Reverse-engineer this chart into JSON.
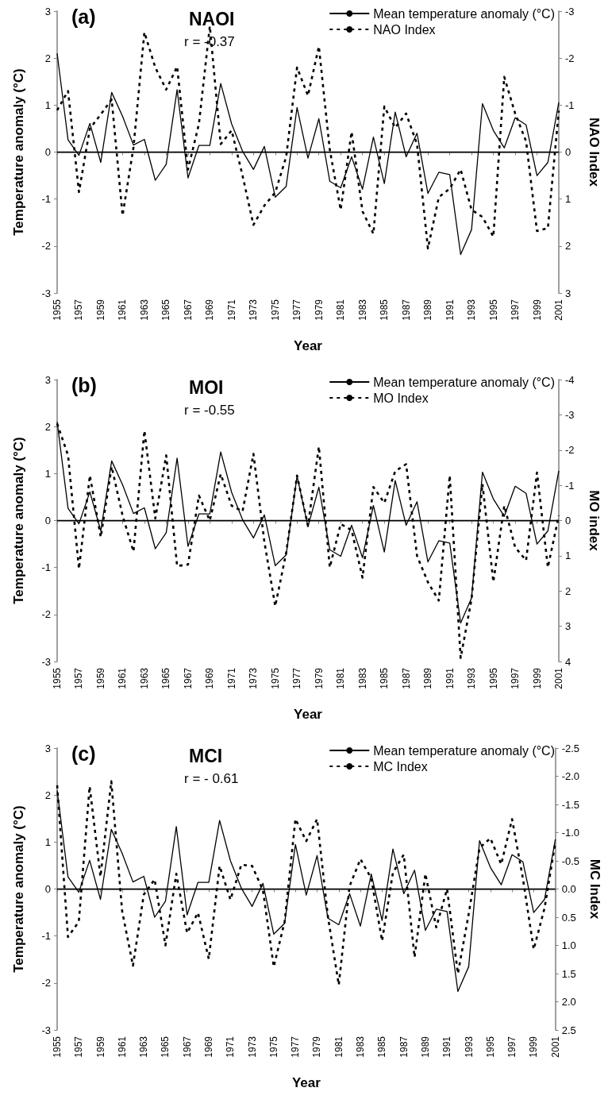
{
  "chart_data": [
    {
      "type": "line",
      "title": "(a)",
      "annotations": [
        "NAOI",
        "r = -0.37"
      ],
      "xlabel": "Year",
      "ylabel": "Temperature anomaly (°C)",
      "y2label": "NAO Index",
      "x": [
        1955,
        1956,
        1957,
        1958,
        1959,
        1960,
        1961,
        1962,
        1963,
        1964,
        1965,
        1966,
        1967,
        1968,
        1969,
        1970,
        1971,
        1972,
        1973,
        1974,
        1975,
        1976,
        1977,
        1978,
        1979,
        1980,
        1981,
        1982,
        1983,
        1984,
        1985,
        1986,
        1987,
        1988,
        1989,
        1990,
        1991,
        1992,
        1993,
        1994,
        1995,
        1996,
        1997,
        1998,
        1999,
        2000,
        2001
      ],
      "xlim": [
        1955,
        2001
      ],
      "xticks": [
        1955,
        1957,
        1959,
        1961,
        1963,
        1965,
        1967,
        1969,
        1971,
        1973,
        1975,
        1977,
        1979,
        1981,
        1983,
        1985,
        1987,
        1989,
        1991,
        1993,
        1995,
        1997,
        1999,
        2001
      ],
      "ylim": [
        -3,
        3
      ],
      "yticks": [
        -3,
        -2,
        -1,
        0,
        1,
        2,
        3
      ],
      "y2lim": [
        3,
        -3
      ],
      "y2ticks": [
        -3,
        -2,
        -1,
        0,
        1,
        2,
        3
      ],
      "legend": "top right",
      "ref_lines": [
        {
          "axis": "y",
          "value": 0,
          "label": null
        }
      ],
      "series": [
        {
          "name": "Mean temperature anomaly (°C)",
          "color": "#000000",
          "line_style": "solid",
          "values": [
            2.1,
            0.26,
            -0.07,
            0.61,
            -0.22,
            1.27,
            0.76,
            0.15,
            0.27,
            -0.6,
            -0.26,
            1.33,
            -0.55,
            0.14,
            0.14,
            1.46,
            0.6,
            0.02,
            -0.37,
            0.12,
            -0.96,
            -0.73,
            0.95,
            -0.13,
            0.71,
            -0.62,
            -0.76,
            -0.1,
            -0.79,
            0.32,
            -0.67,
            0.85,
            -0.1,
            0.4,
            -0.88,
            -0.43,
            -0.48,
            -2.18,
            -1.65,
            1.03,
            0.46,
            0.09,
            0.73,
            0.58,
            -0.5,
            -0.22,
            1.06
          ]
        },
        {
          "name": "NAO Index",
          "color": "#000000",
          "line_style": "dashed",
          "axis": "y2",
          "values": [
            -0.89,
            -1.3,
            0.85,
            -0.5,
            -0.8,
            -1.12,
            1.35,
            -0.1,
            -2.55,
            -1.8,
            -1.33,
            -1.82,
            0.37,
            -0.6,
            -2.68,
            -0.17,
            -0.46,
            0.5,
            1.55,
            1.14,
            0.86,
            0.1,
            -1.8,
            -1.2,
            -2.25,
            -0.05,
            1.23,
            -0.43,
            1.26,
            1.74,
            -0.97,
            -0.52,
            -0.82,
            -0.17,
            2.05,
            0.96,
            0.78,
            0.37,
            1.23,
            1.38,
            1.8,
            -1.6,
            -0.82,
            -0.23,
            1.68,
            1.62,
            -0.88
          ]
        }
      ]
    },
    {
      "type": "line",
      "title": "(b)",
      "annotations": [
        "MOI",
        "r = -0.55"
      ],
      "xlabel": "Year",
      "ylabel": "Temperature anomaly (°C)",
      "y2label": "MO index",
      "x": [
        1955,
        1956,
        1957,
        1958,
        1959,
        1960,
        1961,
        1962,
        1963,
        1964,
        1965,
        1966,
        1967,
        1968,
        1969,
        1970,
        1971,
        1972,
        1973,
        1974,
        1975,
        1976,
        1977,
        1978,
        1979,
        1980,
        1981,
        1982,
        1983,
        1984,
        1985,
        1986,
        1987,
        1988,
        1989,
        1990,
        1991,
        1992,
        1993,
        1994,
        1995,
        1996,
        1997,
        1998,
        1999,
        2000,
        2001
      ],
      "xlim": [
        1955,
        2001
      ],
      "xticks": [
        1955,
        1957,
        1959,
        1961,
        1963,
        1965,
        1967,
        1969,
        1971,
        1973,
        1975,
        1977,
        1979,
        1981,
        1983,
        1985,
        1987,
        1989,
        1991,
        1993,
        1995,
        1997,
        1999,
        2001
      ],
      "ylim": [
        -3,
        3
      ],
      "yticks": [
        -3,
        -2,
        -1,
        0,
        1,
        2,
        3
      ],
      "y2lim": [
        4,
        -4
      ],
      "y2ticks": [
        -4,
        -3,
        -2,
        -1,
        0,
        1,
        2,
        3,
        4
      ],
      "legend": "top right",
      "ref_lines": [
        {
          "axis": "y",
          "value": 0,
          "label": null
        }
      ],
      "series": [
        {
          "name": "Mean temperature anomaly (°C)",
          "color": "#000000",
          "line_style": "solid",
          "values": [
            2.1,
            0.26,
            -0.07,
            0.61,
            -0.22,
            1.27,
            0.76,
            0.15,
            0.27,
            -0.6,
            -0.26,
            1.33,
            -0.55,
            0.14,
            0.14,
            1.46,
            0.6,
            0.02,
            -0.37,
            0.12,
            -0.96,
            -0.73,
            0.95,
            -0.13,
            0.71,
            -0.62,
            -0.76,
            -0.1,
            -0.79,
            0.32,
            -0.67,
            0.85,
            -0.1,
            0.4,
            -0.88,
            -0.43,
            -0.48,
            -2.18,
            -1.65,
            1.03,
            0.46,
            0.09,
            0.73,
            0.58,
            -0.5,
            -0.22,
            1.06
          ]
        },
        {
          "name": "MO Index",
          "color": "#000000",
          "line_style": "dashed",
          "axis": "y2",
          "values": [
            -2.75,
            -1.85,
            1.37,
            -1.28,
            0.47,
            -1.53,
            -0.14,
            0.88,
            -2.55,
            -0.06,
            -1.85,
            1.29,
            1.25,
            -0.71,
            0,
            -1.32,
            -0.42,
            -0.26,
            -1.89,
            0.6,
            2.43,
            0.92,
            -1.28,
            0.15,
            -2.1,
            1.33,
            0.1,
            0.27,
            1.62,
            -0.95,
            -0.5,
            -1.4,
            -1.6,
            1.0,
            1.75,
            2.27,
            -1.28,
            3.9,
            2.23,
            -1.04,
            1.74,
            -0.42,
            0.76,
            1.13,
            -1.36,
            1.33,
            -0.14
          ]
        }
      ]
    },
    {
      "type": "line",
      "title": "(c)",
      "annotations": [
        "MCI",
        "r = - 0.61"
      ],
      "xlabel": "Year",
      "ylabel": "Temperature anomaly (°C)",
      "y2label": "MC Index",
      "x": [
        1955,
        1956,
        1957,
        1958,
        1959,
        1960,
        1961,
        1962,
        1963,
        1964,
        1965,
        1966,
        1967,
        1968,
        1969,
        1970,
        1971,
        1972,
        1973,
        1974,
        1975,
        1976,
        1977,
        1978,
        1979,
        1980,
        1981,
        1982,
        1983,
        1984,
        1985,
        1986,
        1987,
        1988,
        1989,
        1990,
        1991,
        1992,
        1993,
        1994,
        1995,
        1996,
        1997,
        1998,
        1999,
        2000,
        2001
      ],
      "xlim": [
        1955,
        2001
      ],
      "xticks": [
        1955,
        1957,
        1959,
        1961,
        1963,
        1965,
        1967,
        1969,
        1971,
        1973,
        1975,
        1977,
        1979,
        1981,
        1983,
        1985,
        1987,
        1989,
        1991,
        1993,
        1995,
        1997,
        1999,
        2001
      ],
      "ylim": [
        -3,
        3
      ],
      "yticks": [
        -3,
        -2,
        -1,
        0,
        1,
        2,
        3
      ],
      "y2lim": [
        2.5,
        -2.5
      ],
      "y2ticks": [
        -2.5,
        {
          "value": -2,
          "label": "-2.0"
        },
        -1.5,
        {
          "value": -1,
          "label": "-1.0"
        },
        -0.5,
        {
          "value": 0,
          "label": "0.0"
        },
        0.5,
        {
          "value": 1,
          "label": "1.0"
        },
        1.5,
        {
          "value": 2,
          "label": "2.0"
        },
        2.5
      ],
      "legend": "top right",
      "ref_lines": [
        {
          "axis": "y",
          "value": 0,
          "label": null
        }
      ],
      "series": [
        {
          "name": "Mean temperature anomaly (°C)",
          "color": "#000000",
          "line_style": "solid",
          "values": [
            2.1,
            0.26,
            -0.07,
            0.61,
            -0.22,
            1.27,
            0.76,
            0.15,
            0.27,
            -0.6,
            -0.26,
            1.33,
            -0.55,
            0.14,
            0.14,
            1.46,
            0.6,
            0.02,
            -0.37,
            0.12,
            -0.96,
            -0.73,
            0.95,
            -0.13,
            0.71,
            -0.62,
            -0.76,
            -0.1,
            -0.79,
            0.32,
            -0.67,
            0.85,
            -0.1,
            0.4,
            -0.88,
            -0.43,
            -0.48,
            -2.18,
            -1.65,
            1.03,
            0.46,
            0.09,
            0.73,
            0.58,
            -0.5,
            -0.22,
            1.06
          ]
        },
        {
          "name": "MC Index",
          "color": "#000000",
          "line_style": "dashed",
          "axis": "y2",
          "values": [
            -1.84,
            0.85,
            0.58,
            -1.82,
            -0.22,
            -1.91,
            0.39,
            1.36,
            0.1,
            -0.17,
            1.0,
            -0.27,
            0.78,
            0.42,
            1.24,
            -0.41,
            0.19,
            -0.43,
            -0.41,
            0.02,
            1.38,
            0.58,
            -1.24,
            -0.85,
            -1.24,
            0.49,
            1.7,
            -0.05,
            -0.53,
            -0.19,
            0.92,
            -0.29,
            -0.61,
            1.21,
            -0.27,
            0.68,
            0,
            1.5,
            0.44,
            -0.73,
            -0.9,
            -0.44,
            -1.24,
            -0.19,
            1.07,
            0.34,
            -0.83
          ]
        }
      ]
    }
  ]
}
